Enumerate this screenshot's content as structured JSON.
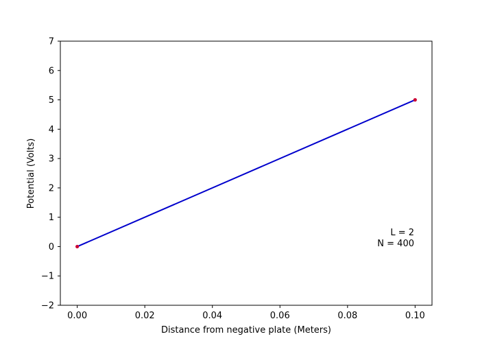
{
  "chart_data": {
    "type": "line",
    "title": "",
    "xlabel": "Distance from negative plate (Meters)",
    "ylabel": "Potential (Volts)",
    "xlim": [
      -0.005,
      0.105
    ],
    "ylim": [
      -2,
      7
    ],
    "xticks": [
      0.0,
      0.02,
      0.04,
      0.06,
      0.08,
      0.1
    ],
    "xtick_labels": [
      "0.00",
      "0.02",
      "0.04",
      "0.06",
      "0.08",
      "0.10"
    ],
    "yticks": [
      -2,
      -1,
      0,
      1,
      2,
      3,
      4,
      5,
      6,
      7
    ],
    "ytick_labels": [
      "−2",
      "−1",
      "0",
      "1",
      "2",
      "3",
      "4",
      "5",
      "6",
      "7"
    ],
    "grid": false,
    "series": [
      {
        "color": "#0000cc",
        "x": [
          0.0,
          0.1
        ],
        "y": [
          0,
          5
        ]
      }
    ],
    "markers": {
      "color": "#cc0033",
      "points": [
        {
          "x": 0.0,
          "y": 0
        },
        {
          "x": 0.1,
          "y": 5
        }
      ]
    },
    "annotations": [
      "L = 2",
      "N = 400"
    ]
  }
}
